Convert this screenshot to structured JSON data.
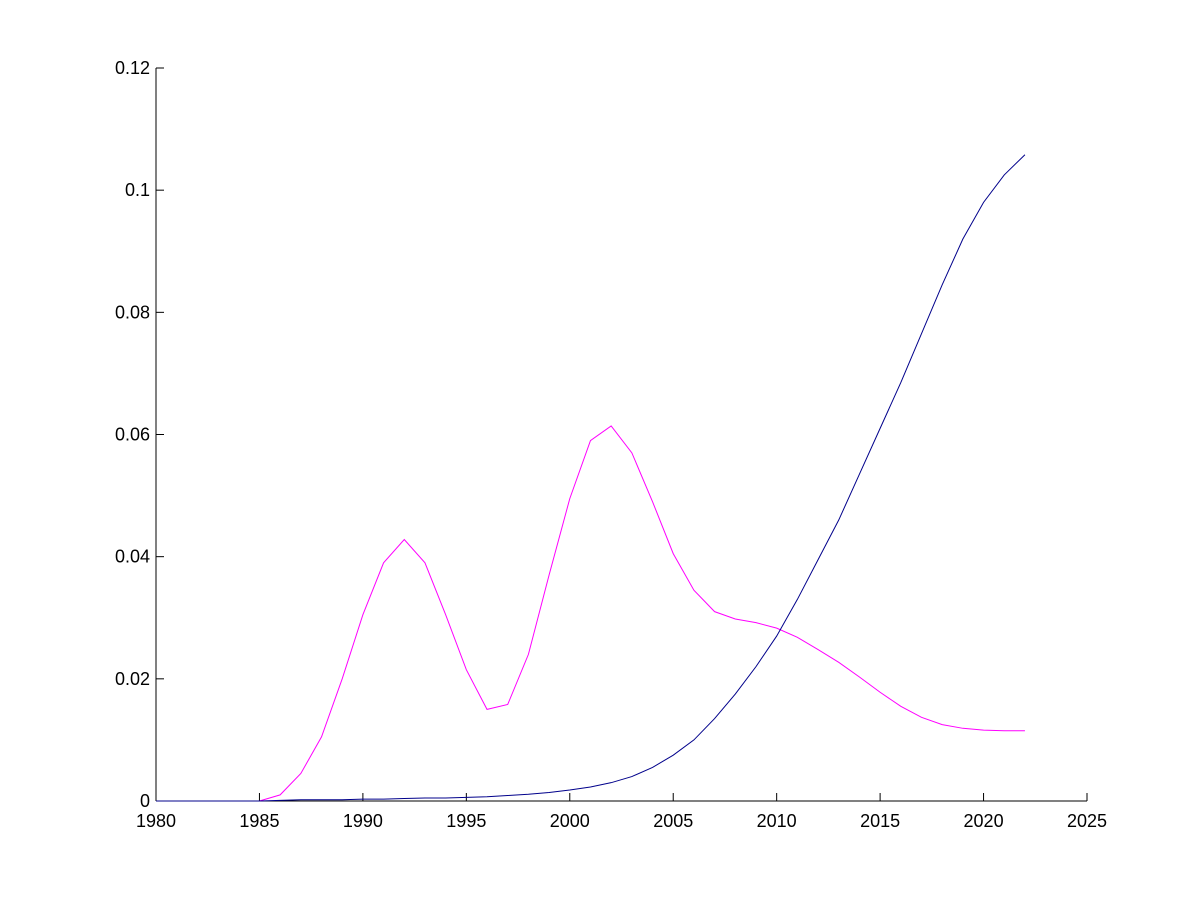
{
  "chart_data": {
    "type": "line",
    "title": "",
    "xlabel": "",
    "ylabel": "",
    "xlim": [
      1980,
      2025
    ],
    "ylim": [
      0,
      0.12
    ],
    "grid": false,
    "box": "left-bottom axes only",
    "x_ticks": [
      1980,
      1985,
      1990,
      1995,
      2000,
      2005,
      2010,
      2015,
      2020,
      2025
    ],
    "x_tick_labels": [
      "1980",
      "1985",
      "1990",
      "1995",
      "2000",
      "2005",
      "2010",
      "2015",
      "2020",
      "2025"
    ],
    "y_ticks": [
      0,
      0.02,
      0.04,
      0.06,
      0.08,
      0.1,
      0.12
    ],
    "y_tick_labels": [
      "0",
      "0.02",
      "0.04",
      "0.06",
      "0.08",
      "0.1",
      "0.12"
    ],
    "series": [
      {
        "color": "#ff00ff",
        "x": [
          1980,
          1981,
          1982,
          1983,
          1984,
          1985,
          1986,
          1987,
          1988,
          1989,
          1990,
          1991,
          1992,
          1993,
          1994,
          1995,
          1996,
          1997,
          1998,
          1999,
          2000,
          2001,
          2002,
          2003,
          2004,
          2005,
          2006,
          2007,
          2008,
          2009,
          2010,
          2011,
          2012,
          2013,
          2014,
          2015,
          2016,
          2017,
          2018,
          2019,
          2020,
          2021,
          2022
        ],
        "y": [
          0,
          0,
          0,
          0,
          0,
          0,
          0.001,
          0.0045,
          0.0105,
          0.02,
          0.0305,
          0.039,
          0.0428,
          0.039,
          0.0305,
          0.0215,
          0.015,
          0.0158,
          0.024,
          0.037,
          0.0495,
          0.059,
          0.0614,
          0.057,
          0.049,
          0.0405,
          0.0345,
          0.031,
          0.0298,
          0.0292,
          0.0283,
          0.0268,
          0.0248,
          0.0227,
          0.0203,
          0.0178,
          0.0155,
          0.0137,
          0.0125,
          0.0119,
          0.0116,
          0.0115,
          0.0115
        ]
      },
      {
        "color": "#00008b",
        "x": [
          1980,
          1981,
          1982,
          1983,
          1984,
          1985,
          1986,
          1987,
          1988,
          1989,
          1990,
          1991,
          1992,
          1993,
          1994,
          1995,
          1996,
          1997,
          1998,
          1999,
          2000,
          2001,
          2002,
          2003,
          2004,
          2005,
          2006,
          2007,
          2008,
          2009,
          2010,
          2011,
          2012,
          2013,
          2014,
          2015,
          2016,
          2017,
          2018,
          2019,
          2020,
          2021,
          2022
        ],
        "y": [
          0,
          0,
          0,
          0,
          0,
          0,
          0.0001,
          0.0002,
          0.0002,
          0.0002,
          0.0003,
          0.0003,
          0.0004,
          0.0005,
          0.0005,
          0.0006,
          0.0007,
          0.0009,
          0.0011,
          0.0014,
          0.0018,
          0.0023,
          0.003,
          0.004,
          0.0055,
          0.0075,
          0.01,
          0.0135,
          0.0175,
          0.022,
          0.027,
          0.033,
          0.0395,
          0.046,
          0.0535,
          0.061,
          0.0685,
          0.0765,
          0.0845,
          0.092,
          0.098,
          0.1025,
          0.1058
        ]
      }
    ]
  }
}
